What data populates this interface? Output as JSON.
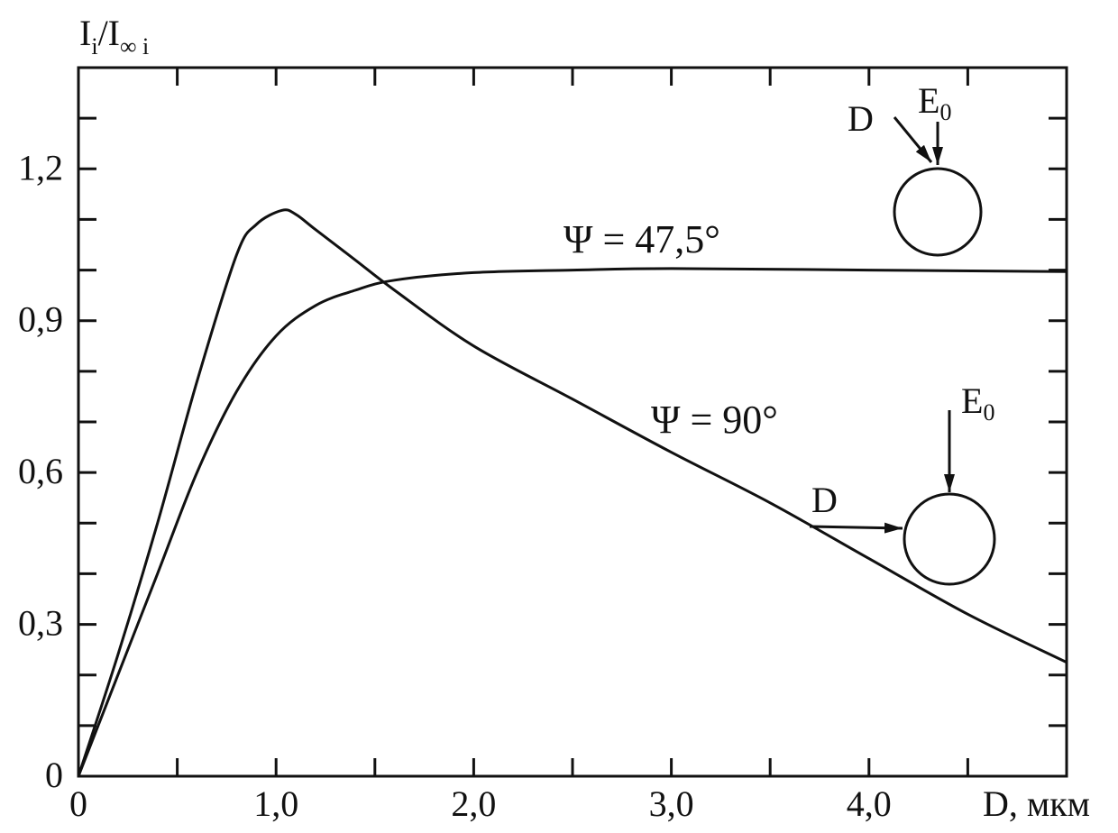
{
  "chart_data": {
    "type": "line",
    "ylabel": {
      "main": "I",
      "sub": "i",
      "rest": "/I",
      "sub2": "∞ i"
    },
    "xlabel": "D, мкм",
    "xlim": [
      0,
      5
    ],
    "ylim": [
      0,
      1.4
    ],
    "xticks": [
      {
        "value": 0,
        "label": "0"
      },
      {
        "value": 1,
        "label": "1,0"
      },
      {
        "value": 2,
        "label": "2,0"
      },
      {
        "value": 3,
        "label": "3,0"
      },
      {
        "value": 4,
        "label": "4,0"
      }
    ],
    "yticks": [
      {
        "value": 0,
        "label": "0"
      },
      {
        "value": 0.3,
        "label": "0,3"
      },
      {
        "value": 0.6,
        "label": "0,6"
      },
      {
        "value": 0.9,
        "label": "0,9"
      },
      {
        "value": 1.2,
        "label": "1,2"
      }
    ],
    "minor_xticks": [
      0.5,
      1,
      1.5,
      2,
      2.5,
      3,
      3.5,
      4,
      4.5
    ],
    "minor_yticks": [
      0.1,
      0.2,
      0.3,
      0.4,
      0.5,
      0.6,
      0.7,
      0.8,
      0.9,
      1,
      1.1,
      1.2,
      1.3
    ],
    "series": [
      {
        "name": "Ψ = 90°",
        "color": "#111111",
        "x": [
          0,
          0.2,
          0.4,
          0.6,
          0.8,
          0.9,
          1.03,
          1.1,
          1.2,
          1.4,
          1.6,
          2.0,
          2.5,
          3.0,
          3.5,
          4.0,
          4.5,
          5.0
        ],
        "values": [
          0,
          0.24,
          0.5,
          0.78,
          1.03,
          1.09,
          1.118,
          1.11,
          1.08,
          1.02,
          0.96,
          0.85,
          0.745,
          0.64,
          0.54,
          0.43,
          0.32,
          0.225
        ]
      },
      {
        "name": "Ψ = 47,5°",
        "color": "#111111",
        "x": [
          0,
          0.2,
          0.4,
          0.6,
          0.8,
          1.0,
          1.2,
          1.4,
          1.6,
          2.0,
          2.5,
          3.0,
          4.0,
          5.0
        ],
        "values": [
          0,
          0.2,
          0.4,
          0.6,
          0.76,
          0.87,
          0.93,
          0.96,
          0.98,
          0.995,
          1.0,
          1.003,
          1.0,
          0.997
        ]
      }
    ],
    "insets": [
      {
        "d": "D",
        "e": "E",
        "e_sub": "0"
      },
      {
        "d": "D",
        "e": "E",
        "e_sub": "0"
      }
    ]
  }
}
